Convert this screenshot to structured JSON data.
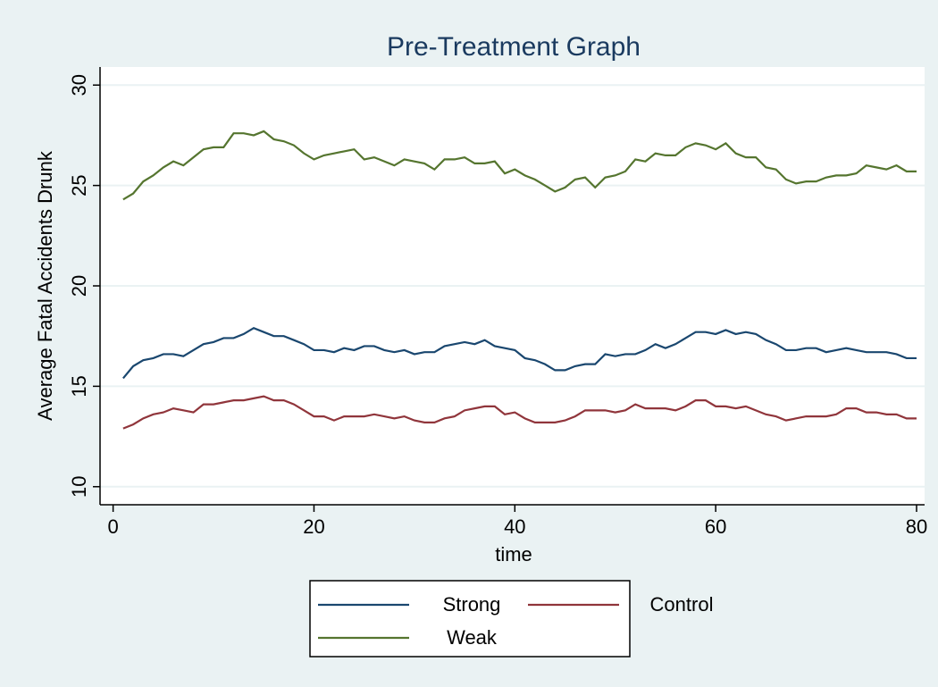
{
  "chart_data": {
    "type": "line",
    "title": "Pre-Treatment Graph",
    "x_label": "time",
    "y_label": "Average Fatal Accidents Drunk",
    "x": [
      1,
      2,
      3,
      4,
      5,
      6,
      7,
      8,
      9,
      10,
      11,
      12,
      13,
      14,
      15,
      16,
      17,
      18,
      19,
      20,
      21,
      22,
      23,
      24,
      25,
      26,
      27,
      28,
      29,
      30,
      31,
      32,
      33,
      34,
      35,
      36,
      37,
      38,
      39,
      40,
      41,
      42,
      43,
      44,
      45,
      46,
      47,
      48,
      49,
      50,
      51,
      52,
      53,
      54,
      55,
      56,
      57,
      58,
      59,
      60,
      61,
      62,
      63,
      64,
      65,
      66,
      67,
      68,
      69,
      70,
      71,
      72,
      73,
      74,
      75,
      76,
      77,
      78,
      79,
      80
    ],
    "series": [
      {
        "name": "Strong",
        "color": "#1a476f",
        "values": [
          15.4,
          16.0,
          16.3,
          16.4,
          16.6,
          16.6,
          16.5,
          16.8,
          17.1,
          17.2,
          17.4,
          17.4,
          17.6,
          17.9,
          17.7,
          17.5,
          17.5,
          17.3,
          17.1,
          16.8,
          16.8,
          16.7,
          16.9,
          16.8,
          17.0,
          17.0,
          16.8,
          16.7,
          16.8,
          16.6,
          16.7,
          16.7,
          17.0,
          17.1,
          17.2,
          17.1,
          17.3,
          17.0,
          16.9,
          16.8,
          16.4,
          16.3,
          16.1,
          15.8,
          15.8,
          16.0,
          16.1,
          16.1,
          16.6,
          16.5,
          16.6,
          16.6,
          16.8,
          17.1,
          16.9,
          17.1,
          17.4,
          17.7,
          17.7,
          17.6,
          17.8,
          17.6,
          17.7,
          17.6,
          17.3,
          17.1,
          16.8,
          16.8,
          16.9,
          16.9,
          16.7,
          16.8,
          16.9,
          16.8,
          16.7,
          16.7,
          16.7,
          16.6,
          16.4,
          16.4
        ]
      },
      {
        "name": "Control",
        "color": "#90353b",
        "values": [
          12.9,
          13.1,
          13.4,
          13.6,
          13.7,
          13.9,
          13.8,
          13.7,
          14.1,
          14.1,
          14.2,
          14.3,
          14.3,
          14.4,
          14.5,
          14.3,
          14.3,
          14.1,
          13.8,
          13.5,
          13.5,
          13.3,
          13.5,
          13.5,
          13.5,
          13.6,
          13.5,
          13.4,
          13.5,
          13.3,
          13.2,
          13.2,
          13.4,
          13.5,
          13.8,
          13.9,
          14.0,
          14.0,
          13.6,
          13.7,
          13.4,
          13.2,
          13.2,
          13.2,
          13.3,
          13.5,
          13.8,
          13.8,
          13.8,
          13.7,
          13.8,
          14.1,
          13.9,
          13.9,
          13.9,
          13.8,
          14.0,
          14.3,
          14.3,
          14.0,
          14.0,
          13.9,
          14.0,
          13.8,
          13.6,
          13.5,
          13.3,
          13.4,
          13.5,
          13.5,
          13.5,
          13.6,
          13.9,
          13.9,
          13.7,
          13.7,
          13.6,
          13.6,
          13.4,
          13.4
        ]
      },
      {
        "name": "Weak",
        "color": "#55752f",
        "values": [
          24.3,
          24.6,
          25.2,
          25.5,
          25.9,
          26.2,
          26.0,
          26.4,
          26.8,
          26.9,
          26.9,
          27.6,
          27.6,
          27.5,
          27.7,
          27.3,
          27.2,
          27.0,
          26.6,
          26.3,
          26.5,
          26.6,
          26.7,
          26.8,
          26.3,
          26.4,
          26.2,
          26.0,
          26.3,
          26.2,
          26.1,
          25.8,
          26.3,
          26.3,
          26.4,
          26.1,
          26.1,
          26.2,
          25.6,
          25.8,
          25.5,
          25.3,
          25.0,
          24.7,
          24.9,
          25.3,
          25.4,
          24.9,
          25.4,
          25.5,
          25.7,
          26.3,
          26.2,
          26.6,
          26.5,
          26.5,
          26.9,
          27.1,
          27.0,
          26.8,
          27.1,
          26.6,
          26.4,
          26.4,
          25.9,
          25.8,
          25.3,
          25.1,
          25.2,
          25.2,
          25.4,
          25.5,
          25.5,
          25.6,
          26.0,
          25.9,
          25.8,
          26.0,
          25.7,
          25.7
        ]
      }
    ],
    "xlim": [
      -1.3,
      80.8
    ],
    "ylim": [
      9.1,
      30.9
    ],
    "xticks": [
      0,
      20,
      40,
      60,
      80
    ],
    "yticks": [
      10,
      15,
      20,
      25,
      30
    ],
    "grid": true,
    "legend": "bottom"
  }
}
